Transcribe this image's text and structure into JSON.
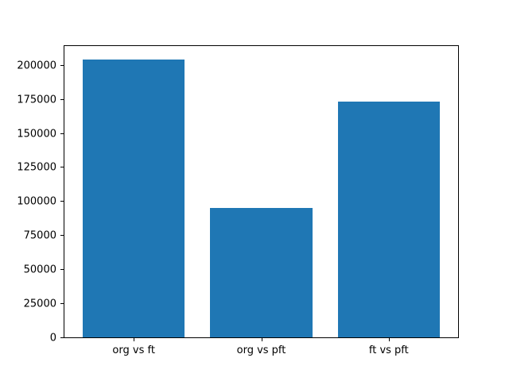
{
  "figure": {
    "background_color": "#ffffff",
    "axis_color": "#000000"
  },
  "chart_data": {
    "type": "bar",
    "title": "",
    "xlabel": "",
    "ylabel": "",
    "categories": [
      "org vs ft",
      "org vs pft",
      "ft vs pft"
    ],
    "values": [
      204000,
      95000,
      173000
    ],
    "yticks": [
      0,
      25000,
      50000,
      75000,
      100000,
      125000,
      150000,
      175000,
      200000
    ],
    "ylim": [
      0,
      215000
    ],
    "xlim_margin_units": 0.55,
    "bar_width_fraction": 0.8,
    "bar_color": "#1f77b4",
    "grid": false,
    "legend_position": "none"
  }
}
